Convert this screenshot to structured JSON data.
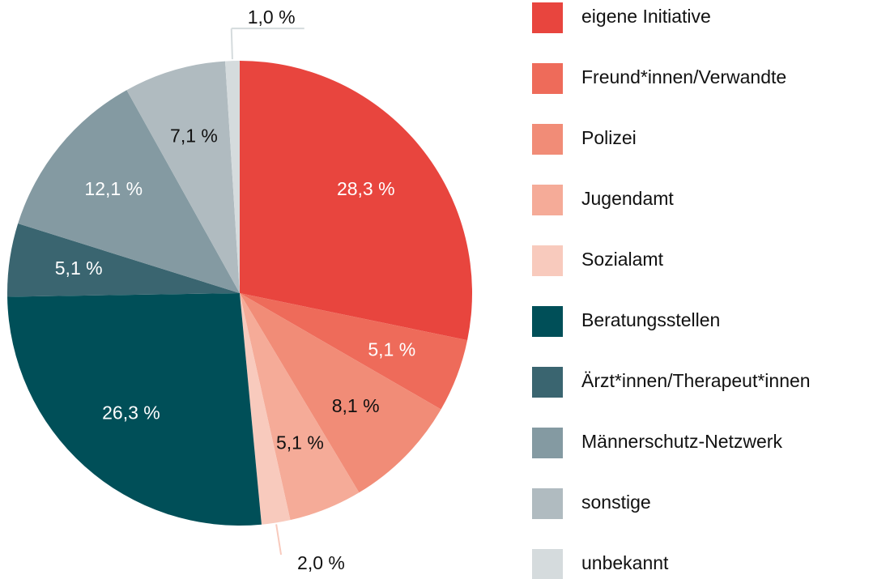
{
  "chart_data": {
    "type": "pie",
    "categories": [
      "eigene Initiative",
      "Freund*innen/Verwandte",
      "Polizei",
      "Jugendamt",
      "Sozialamt",
      "Beratungsstellen",
      "Ärzt*innen/Therapeut*innen",
      "Männerschutz-Netzwerk",
      "sonstige",
      "unbekannt"
    ],
    "values": [
      28.3,
      5.1,
      8.1,
      5.1,
      2.0,
      26.3,
      5.1,
      12.1,
      7.1,
      1.0
    ],
    "value_labels": [
      "28,3 %",
      "5,1 %",
      "8,1 %",
      "5,1 %",
      "2,0 %",
      "26,3 %",
      "5,1 %",
      "12,1 %",
      "7,1 %",
      "1,0 %"
    ],
    "colors": [
      "#e8453e",
      "#ee6b5a",
      "#f18c77",
      "#f5ab98",
      "#f8cabd",
      "#004f58",
      "#3a6570",
      "#849aa2",
      "#b0bbc0",
      "#d5dbdd"
    ],
    "legend": "right"
  }
}
